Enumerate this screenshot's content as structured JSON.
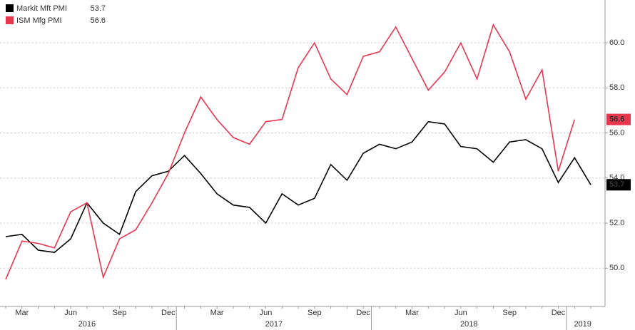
{
  "chart_data": {
    "type": "line",
    "x": [
      "2016-02",
      "2016-03",
      "2016-04",
      "2016-05",
      "2016-06",
      "2016-07",
      "2016-08",
      "2016-09",
      "2016-10",
      "2016-11",
      "2016-12",
      "2017-01",
      "2017-02",
      "2017-03",
      "2017-04",
      "2017-05",
      "2017-06",
      "2017-07",
      "2017-08",
      "2017-09",
      "2017-10",
      "2017-11",
      "2017-12",
      "2018-01",
      "2018-02",
      "2018-03",
      "2018-04",
      "2018-05",
      "2018-06",
      "2018-07",
      "2018-08",
      "2018-09",
      "2018-10",
      "2018-11",
      "2018-12",
      "2019-01",
      "2019-02"
    ],
    "series": [
      {
        "name": "Markit Mft PMI",
        "color": "#000000",
        "values": [
          51.4,
          51.5,
          50.8,
          50.7,
          51.3,
          52.9,
          52.0,
          51.5,
          53.4,
          54.1,
          54.3,
          55.0,
          54.2,
          53.3,
          52.8,
          52.7,
          52.0,
          53.3,
          52.8,
          53.1,
          54.6,
          53.9,
          55.1,
          55.5,
          55.3,
          55.6,
          56.5,
          56.4,
          55.4,
          55.3,
          54.7,
          55.6,
          55.7,
          55.3,
          53.8,
          54.9,
          53.7
        ]
      },
      {
        "name": "ISM Mfg PMI",
        "color": "#e8364f",
        "values": [
          49.5,
          51.2,
          51.1,
          50.9,
          52.5,
          52.9,
          49.6,
          51.3,
          51.7,
          52.9,
          54.2,
          56.0,
          57.6,
          56.6,
          55.8,
          55.5,
          56.5,
          56.6,
          58.9,
          60.0,
          58.4,
          57.7,
          59.4,
          59.6,
          60.7,
          59.3,
          57.9,
          58.7,
          60.0,
          58.4,
          60.8,
          59.6,
          57.5,
          58.8,
          54.3,
          56.6,
          null
        ]
      }
    ],
    "ylim": [
      48.3,
      61.9
    ],
    "yticks": [
      {
        "value": 50,
        "label": "50.0"
      },
      {
        "value": 52,
        "label": "52.0"
      },
      {
        "value": 54,
        "label": "54.0"
      },
      {
        "value": 56,
        "label": "56.0"
      },
      {
        "value": 58,
        "label": "58.0"
      },
      {
        "value": 60,
        "label": "60.0"
      }
    ],
    "xticks": [
      {
        "value": "2016-03",
        "label": "Mar"
      },
      {
        "value": "2016-06",
        "label": "Jun"
      },
      {
        "value": "2016-09",
        "label": "Sep"
      },
      {
        "value": "2016-12",
        "label": "Dec"
      },
      {
        "value": "2017-03",
        "label": "Mar"
      },
      {
        "value": "2017-06",
        "label": "Jun"
      },
      {
        "value": "2017-09",
        "label": "Sep"
      },
      {
        "value": "2017-12",
        "label": "Dec"
      },
      {
        "value": "2018-03",
        "label": "Mar"
      },
      {
        "value": "2018-06",
        "label": "Jun"
      },
      {
        "value": "2018-09",
        "label": "Sep"
      },
      {
        "value": "2018-12",
        "label": "Dec"
      }
    ],
    "years": [
      "2016",
      "2017",
      "2018",
      "2019"
    ],
    "grid": true,
    "legend": "top-left"
  }
}
